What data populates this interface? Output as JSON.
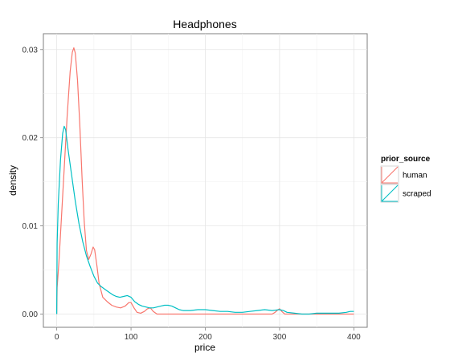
{
  "chart_data": {
    "type": "line",
    "title": "Headphones",
    "xlabel": "price",
    "ylabel": "density",
    "xlim": [
      -18,
      418
    ],
    "ylim": [
      -0.0015,
      0.0318
    ],
    "x_ticks": [
      0,
      100,
      200,
      300,
      400
    ],
    "y_ticks": [
      0.0,
      0.01,
      0.02,
      0.03
    ],
    "x_tick_labels": [
      "0",
      "100",
      "200",
      "300",
      "400"
    ],
    "y_tick_labels": [
      "0.00",
      "0.01",
      "0.02",
      "0.03"
    ],
    "grid": true,
    "legend": {
      "title": "prior_source",
      "position": "right"
    },
    "series": [
      {
        "name": "human",
        "color": "#f8766d",
        "points": [
          [
            0,
            0.0
          ],
          [
            0.5,
            0.003
          ],
          [
            3,
            0.006
          ],
          [
            6,
            0.0105
          ],
          [
            10,
            0.0165
          ],
          [
            14,
            0.0225
          ],
          [
            18,
            0.0275
          ],
          [
            21,
            0.0297
          ],
          [
            23,
            0.0302
          ],
          [
            25,
            0.0296
          ],
          [
            28,
            0.0265
          ],
          [
            31,
            0.0215
          ],
          [
            34,
            0.0155
          ],
          [
            37,
            0.0105
          ],
          [
            40,
            0.0072
          ],
          [
            43,
            0.0062
          ],
          [
            46,
            0.0068
          ],
          [
            49,
            0.0076
          ],
          [
            51,
            0.0073
          ],
          [
            54,
            0.0055
          ],
          [
            57,
            0.0035
          ],
          [
            62,
            0.0019
          ],
          [
            68,
            0.0014
          ],
          [
            74,
            0.001
          ],
          [
            80,
            0.0008
          ],
          [
            86,
            0.0007
          ],
          [
            92,
            0.0009
          ],
          [
            97,
            0.0013
          ],
          [
            100,
            0.0013
          ],
          [
            104,
            0.0007
          ],
          [
            108,
            0.0002
          ],
          [
            113,
            0.0001
          ],
          [
            118,
            0.0003
          ],
          [
            122,
            0.0006
          ],
          [
            126,
            0.0007
          ],
          [
            130,
            0.0003
          ],
          [
            135,
            0.0
          ],
          [
            160,
            0.0
          ],
          [
            200,
            0.0
          ],
          [
            250,
            0.0
          ],
          [
            290,
            0.0
          ],
          [
            294,
            0.0002
          ],
          [
            298,
            0.0005
          ],
          [
            300,
            0.0006
          ],
          [
            303,
            0.0003
          ],
          [
            307,
            0.0
          ],
          [
            350,
            0.0
          ],
          [
            400,
            0.0
          ]
        ]
      },
      {
        "name": "scraped",
        "color": "#00bfc4",
        "points": [
          [
            0,
            0.0
          ],
          [
            0.5,
            0.008
          ],
          [
            2,
            0.0125
          ],
          [
            5,
            0.0175
          ],
          [
            8,
            0.0205
          ],
          [
            10,
            0.0213
          ],
          [
            12,
            0.0209
          ],
          [
            15,
            0.0188
          ],
          [
            20,
            0.0158
          ],
          [
            25,
            0.0128
          ],
          [
            30,
            0.0102
          ],
          [
            35,
            0.0082
          ],
          [
            40,
            0.0066
          ],
          [
            45,
            0.0054
          ],
          [
            50,
            0.0043
          ],
          [
            55,
            0.0035
          ],
          [
            60,
            0.0031
          ],
          [
            65,
            0.0028
          ],
          [
            70,
            0.0025
          ],
          [
            75,
            0.0022
          ],
          [
            80,
            0.002
          ],
          [
            85,
            0.0019
          ],
          [
            90,
            0.002
          ],
          [
            95,
            0.0021
          ],
          [
            100,
            0.0019
          ],
          [
            105,
            0.0014
          ],
          [
            110,
            0.0011
          ],
          [
            115,
            0.0009
          ],
          [
            120,
            0.0008
          ],
          [
            125,
            0.0007
          ],
          [
            130,
            0.0007
          ],
          [
            135,
            0.0008
          ],
          [
            140,
            0.0009
          ],
          [
            145,
            0.001
          ],
          [
            150,
            0.001
          ],
          [
            155,
            0.0009
          ],
          [
            160,
            0.0007
          ],
          [
            165,
            0.0005
          ],
          [
            170,
            0.0004
          ],
          [
            180,
            0.0004
          ],
          [
            190,
            0.0005
          ],
          [
            200,
            0.0005
          ],
          [
            210,
            0.0004
          ],
          [
            220,
            0.0003
          ],
          [
            230,
            0.0003
          ],
          [
            240,
            0.0002
          ],
          [
            250,
            0.0002
          ],
          [
            260,
            0.0003
          ],
          [
            270,
            0.0004
          ],
          [
            280,
            0.0005
          ],
          [
            290,
            0.0004
          ],
          [
            300,
            0.0005
          ],
          [
            305,
            0.0004
          ],
          [
            310,
            0.0002
          ],
          [
            320,
            0.0001
          ],
          [
            330,
            0.0
          ],
          [
            340,
            0.0
          ],
          [
            350,
            0.0001
          ],
          [
            360,
            0.0001
          ],
          [
            370,
            0.0001
          ],
          [
            380,
            0.0001
          ],
          [
            390,
            0.0002
          ],
          [
            395,
            0.0003
          ],
          [
            400,
            0.0003
          ]
        ]
      }
    ]
  }
}
